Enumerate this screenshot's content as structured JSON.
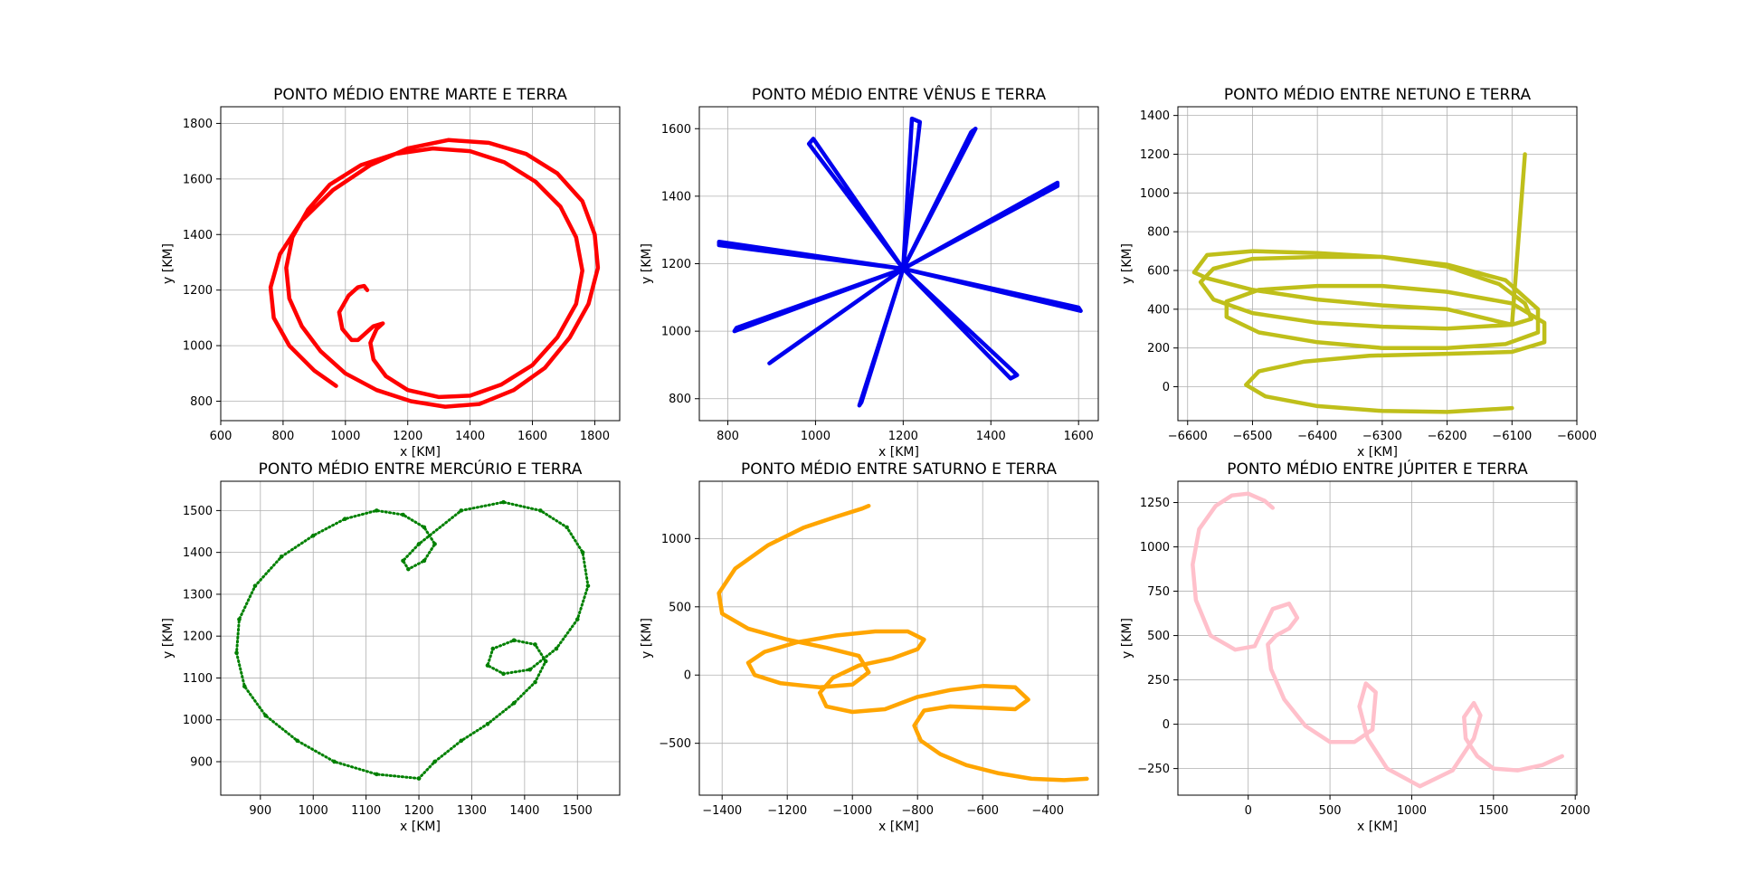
{
  "chart_data": [
    {
      "type": "line",
      "title": "PONTO MÉDIO ENTRE MARTE E TERRA",
      "xlabel": "x [KM]",
      "ylabel": "y [KM]",
      "xlim": [
        600,
        1880
      ],
      "ylim": [
        730,
        1860
      ],
      "xticks": [
        600,
        800,
        1000,
        1200,
        1400,
        1600,
        1800
      ],
      "yticks": [
        800,
        1000,
        1200,
        1400,
        1600,
        1800
      ],
      "grid": true,
      "color": "#ff0000",
      "series": [
        {
          "x": [
            970,
            900,
            820,
            770,
            760,
            790,
            860,
            960,
            1080,
            1200,
            1330,
            1460,
            1580,
            1680,
            1760,
            1800,
            1810,
            1780,
            1720,
            1640,
            1540,
            1430,
            1320,
            1210,
            1100,
            1000,
            920,
            860,
            820,
            810,
            830,
            880,
            950,
            1050,
            1160,
            1280,
            1400,
            1510,
            1610,
            1690,
            1740,
            1760,
            1740,
            1680,
            1600,
            1500,
            1400,
            1300,
            1200,
            1130,
            1090,
            1080,
            1100,
            1120,
            1090,
            1050,
            1040,
            1020,
            990,
            980,
            1010,
            1040,
            1060,
            1070
          ],
          "y": [
            855,
            910,
            1000,
            1100,
            1210,
            1330,
            1450,
            1560,
            1650,
            1710,
            1740,
            1730,
            1690,
            1620,
            1520,
            1400,
            1280,
            1150,
            1030,
            920,
            840,
            790,
            780,
            800,
            840,
            900,
            980,
            1070,
            1170,
            1280,
            1390,
            1490,
            1580,
            1650,
            1690,
            1710,
            1700,
            1660,
            1590,
            1500,
            1390,
            1270,
            1150,
            1030,
            930,
            860,
            820,
            815,
            840,
            890,
            950,
            1010,
            1060,
            1080,
            1070,
            1030,
            1020,
            1020,
            1060,
            1120,
            1180,
            1210,
            1215,
            1200
          ]
        }
      ]
    },
    {
      "type": "line",
      "title": "PONTO MÉDIO ENTRE VÊNUS E TERRA",
      "xlabel": "x [KM]",
      "ylabel": "y [KM]",
      "xlim": [
        735,
        1645
      ],
      "ylim": [
        735,
        1665
      ],
      "xticks": [
        800,
        1000,
        1200,
        1400,
        1600
      ],
      "yticks": [
        800,
        1000,
        1200,
        1400,
        1600
      ],
      "grid": true,
      "color": "#0000ee",
      "series": [
        {
          "x": [
            1200,
            985,
            995,
            1200,
            1552,
            1552,
            1200,
            815,
            820,
            1200,
            1238,
            1220,
            1200,
            1460,
            1445,
            1200,
            1100,
            1105,
            1200,
            1605,
            1600,
            1200,
            780,
            780,
            1200,
            1355,
            1365,
            1200,
            895,
            905,
            1200
          ],
          "y": [
            1185,
            1555,
            1570,
            1185,
            1430,
            1440,
            1185,
            1000,
            1010,
            1185,
            1620,
            1630,
            1185,
            870,
            860,
            1185,
            780,
            790,
            1185,
            1060,
            1070,
            1185,
            1255,
            1265,
            1185,
            1590,
            1600,
            1185,
            905,
            915,
            1185
          ]
        }
      ]
    },
    {
      "type": "line",
      "title": "PONTO MÉDIO ENTRE NETUNO E TERRA",
      "xlabel": "x [KM]",
      "ylabel": "y [KM]",
      "xlim": [
        -6615,
        -6000
      ],
      "ylim": [
        -175,
        1445
      ],
      "xticks": [
        -6600,
        -6500,
        -6400,
        -6300,
        -6200,
        -6100,
        -6000
      ],
      "yticks": [
        0,
        200,
        400,
        600,
        800,
        1000,
        1200,
        1400
      ],
      "grid": true,
      "color": "#bfbf1a",
      "series": [
        {
          "x": [
            -6100,
            -6200,
            -6300,
            -6400,
            -6480,
            -6510,
            -6490,
            -6420,
            -6320,
            -6200,
            -6100,
            -6050,
            -6050,
            -6100,
            -6200,
            -6300,
            -6400,
            -6490,
            -6540,
            -6540,
            -6490,
            -6400,
            -6300,
            -6200,
            -6110,
            -6060,
            -6060,
            -6110,
            -6200,
            -6300,
            -6400,
            -6500,
            -6560,
            -6580,
            -6560,
            -6500,
            -6400,
            -6300,
            -6200,
            -6100,
            -6070,
            -6080,
            -6120,
            -6200,
            -6300,
            -6400,
            -6500,
            -6570,
            -6590,
            -6570,
            -6500,
            -6400,
            -6300,
            -6200,
            -6100,
            -6080
          ],
          "y": [
            -110,
            -130,
            -125,
            -100,
            -50,
            10,
            80,
            130,
            160,
            170,
            180,
            230,
            330,
            430,
            490,
            520,
            520,
            500,
            440,
            360,
            280,
            230,
            200,
            200,
            220,
            280,
            400,
            550,
            630,
            670,
            670,
            660,
            610,
            540,
            450,
            380,
            330,
            310,
            300,
            320,
            350,
            430,
            530,
            620,
            670,
            690,
            700,
            680,
            590,
            560,
            500,
            450,
            420,
            400,
            320,
            1200
          ]
        }
      ]
    },
    {
      "type": "scatter",
      "title": "PONTO MÉDIO ENTRE MERCÚRIO E TERRA",
      "xlabel": "x [KM]",
      "ylabel": "y [KM]",
      "xlim": [
        825,
        1580
      ],
      "ylim": [
        820,
        1570
      ],
      "xticks": [
        900,
        1000,
        1100,
        1200,
        1300,
        1400,
        1500
      ],
      "yticks": [
        900,
        1000,
        1100,
        1200,
        1300,
        1400,
        1500
      ],
      "grid": true,
      "color": "#008000",
      "series": [
        {
          "x": [
            1200,
            1120,
            1040,
            970,
            910,
            870,
            855,
            860,
            890,
            940,
            1000,
            1060,
            1120,
            1170,
            1210,
            1230,
            1210,
            1180,
            1170,
            1200,
            1280,
            1360,
            1430,
            1480,
            1510,
            1520,
            1500,
            1460,
            1410,
            1360,
            1330,
            1340,
            1380,
            1420,
            1440,
            1420,
            1380,
            1330,
            1280,
            1230,
            1200
          ],
          "y": [
            860,
            870,
            900,
            950,
            1010,
            1080,
            1160,
            1240,
            1320,
            1390,
            1440,
            1480,
            1500,
            1490,
            1460,
            1420,
            1380,
            1360,
            1380,
            1420,
            1500,
            1520,
            1500,
            1460,
            1400,
            1320,
            1240,
            1170,
            1120,
            1110,
            1130,
            1170,
            1190,
            1180,
            1140,
            1090,
            1040,
            990,
            950,
            900,
            860
          ]
        }
      ]
    },
    {
      "type": "line",
      "title": "PONTO MÉDIO ENTRE SATURNO E TERRA",
      "xlabel": "x [KM]",
      "ylabel": "y [KM]",
      "xlim": [
        -1470,
        -245
      ],
      "ylim": [
        -880,
        1420
      ],
      "xticks": [
        -1400,
        -1200,
        -1000,
        -800,
        -600,
        -400
      ],
      "yticks": [
        -500,
        0,
        500,
        1000
      ],
      "grid": true,
      "color": "#ffa500",
      "series": [
        {
          "x": [
            -280,
            -350,
            -450,
            -550,
            -650,
            -730,
            -790,
            -810,
            -780,
            -700,
            -600,
            -500,
            -460,
            -500,
            -600,
            -700,
            -800,
            -900,
            -1000,
            -1080,
            -1100,
            -1060,
            -980,
            -880,
            -800,
            -780,
            -830,
            -930,
            -1050,
            -1170,
            -1270,
            -1320,
            -1300,
            -1220,
            -1100,
            -1000,
            -950,
            -980,
            -1080,
            -1200,
            -1320,
            -1400,
            -1410,
            -1360,
            -1260,
            -1150,
            -1050,
            -970,
            -950
          ],
          "y": [
            -760,
            -770,
            -760,
            -720,
            -660,
            -580,
            -480,
            -370,
            -260,
            -230,
            -240,
            -250,
            -180,
            -90,
            -80,
            -110,
            -160,
            -250,
            -270,
            -230,
            -130,
            -20,
            70,
            120,
            190,
            260,
            320,
            320,
            290,
            240,
            170,
            90,
            0,
            -60,
            -90,
            -70,
            20,
            140,
            200,
            260,
            340,
            450,
            600,
            780,
            950,
            1080,
            1160,
            1220,
            1240
          ]
        }
      ]
    },
    {
      "type": "line",
      "title": "PONTO MÉDIO ENTRE JÚPITER E TERRA",
      "xlabel": "x [KM]",
      "ylabel": "y [KM]",
      "xlim": [
        -430,
        2010
      ],
      "ylim": [
        -400,
        1370
      ],
      "xticks": [
        0,
        500,
        1000,
        1500,
        2000
      ],
      "yticks": [
        -250,
        0,
        250,
        500,
        750,
        1000,
        1250
      ],
      "grid": true,
      "color": "#ffc0cb",
      "series": [
        {
          "x": [
            1920,
            1800,
            1650,
            1500,
            1400,
            1330,
            1320,
            1380,
            1420,
            1380,
            1250,
            1050,
            850,
            730,
            680,
            720,
            780,
            760,
            650,
            500,
            350,
            220,
            140,
            120,
            170,
            250,
            300,
            250,
            150,
            40,
            -80,
            -230,
            -320,
            -340,
            -300,
            -200,
            -100,
            0,
            100,
            150
          ],
          "y": [
            -180,
            -230,
            -260,
            -250,
            -180,
            -80,
            40,
            120,
            50,
            -80,
            -260,
            -350,
            -250,
            -80,
            100,
            230,
            180,
            -30,
            -100,
            -100,
            -10,
            140,
            310,
            450,
            500,
            540,
            600,
            680,
            650,
            440,
            420,
            500,
            700,
            900,
            1100,
            1230,
            1290,
            1300,
            1260,
            1220
          ]
        }
      ]
    }
  ]
}
